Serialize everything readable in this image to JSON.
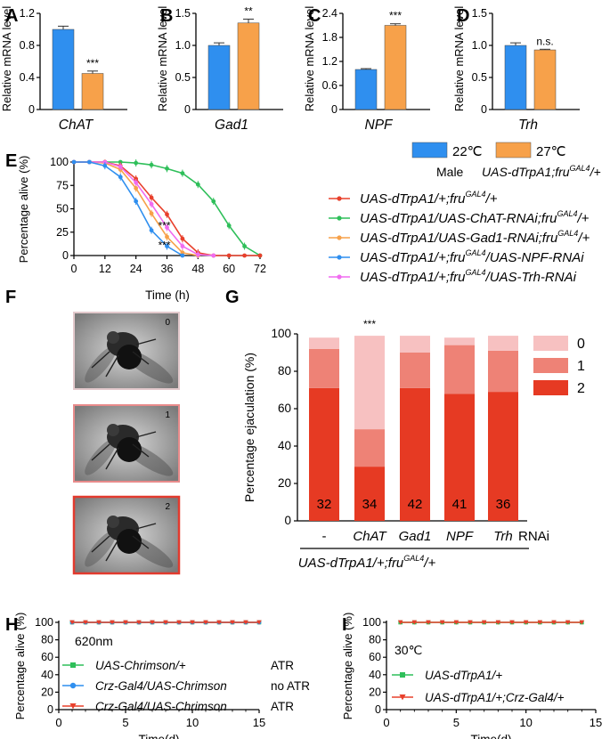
{
  "colors": {
    "blue": "#2f8fef",
    "orange": "#f7a14a",
    "red": "#e8402c",
    "green": "#2fbf5a",
    "magenta": "#f06cf0",
    "r0": "#f7c1c1",
    "r1": "#ee8276",
    "r2": "#e63a23",
    "rnai": "#e24a3b"
  },
  "chart_data": [
    {
      "panel": "A",
      "type": "bar",
      "ylabel": "Relative mRNA level",
      "xlabel": "ChAT",
      "ylim": [
        0,
        1.2
      ],
      "ticks": [
        "0",
        "0.4",
        "0.8",
        "1.2"
      ],
      "tickvals": [
        0,
        0.4,
        0.8,
        1.2
      ],
      "values": [
        1.0,
        0.45
      ],
      "errors": [
        0.04,
        0.03
      ],
      "sig": "***"
    },
    {
      "panel": "B",
      "type": "bar",
      "ylabel": "Relative mRNA level",
      "xlabel": "Gad1",
      "ylim": [
        0,
        1.5
      ],
      "ticks": [
        "0",
        "0.5",
        "1.0",
        "1.5"
      ],
      "tickvals": [
        0,
        0.5,
        1.0,
        1.5
      ],
      "values": [
        1.0,
        1.35
      ],
      "errors": [
        0.04,
        0.06
      ],
      "sig": "**"
    },
    {
      "panel": "C",
      "type": "bar",
      "ylabel": "Relative mRNA level",
      "xlabel": "NPF",
      "ylim": [
        0,
        2.4
      ],
      "ticks": [
        "0",
        "0.6",
        "1.2",
        "1.8",
        "2.4"
      ],
      "tickvals": [
        0,
        0.6,
        1.2,
        1.8,
        2.4
      ],
      "values": [
        1.0,
        2.1
      ],
      "errors": [
        0.02,
        0.04
      ],
      "sig": "***"
    },
    {
      "panel": "D",
      "type": "bar",
      "ylabel": "Relative mRNA level",
      "xlabel": "Trh",
      "ylim": [
        0,
        1.5
      ],
      "ticks": [
        "0",
        "0.5",
        "1.0",
        "1.5"
      ],
      "tickvals": [
        0,
        0.5,
        1.0,
        1.5
      ],
      "values": [
        1.0,
        0.93
      ],
      "errors": [
        0.04,
        0.01
      ],
      "sig": "n.s."
    },
    {
      "panel": "E",
      "type": "line",
      "ylabel": "Percentage alive (%)",
      "xlabel": "Time (h)",
      "xlim": [
        0,
        72
      ],
      "ylim": [
        0,
        100
      ],
      "xticks": [
        "0",
        "12",
        "24",
        "36",
        "48",
        "60",
        "72"
      ],
      "xtickvals": [
        0,
        12,
        24,
        36,
        48,
        60,
        72
      ],
      "yticks": [
        "0",
        "25",
        "50",
        "75",
        "100"
      ],
      "ytickvals": [
        0,
        25,
        50,
        75,
        100
      ],
      "annotations": [
        {
          "text": "***",
          "x": 35,
          "y": 32
        },
        {
          "text": "***",
          "x": 35,
          "y": 11
        }
      ],
      "series": [
        {
          "name": "UAS-dTrpA1/+;fru/+",
          "color": "red",
          "x": [
            0,
            6,
            12,
            18,
            24,
            30,
            36,
            42,
            48,
            54,
            60,
            66,
            72
          ],
          "y": [
            100,
            100,
            100,
            96,
            82,
            62,
            44,
            18,
            3,
            0,
            0,
            0,
            0
          ]
        },
        {
          "name": "UAS-dTrpA1/UAS-ChAT-RNAi;fru/+",
          "color": "green",
          "x": [
            0,
            6,
            12,
            18,
            24,
            30,
            36,
            42,
            48,
            54,
            60,
            66,
            72
          ],
          "y": [
            100,
            100,
            100,
            100,
            99,
            97,
            93,
            88,
            76,
            58,
            32,
            10,
            0
          ]
        },
        {
          "name": "UAS-dTrpA1/UAS-Gad1-RNAi;fru/+",
          "color": "orange",
          "x": [
            0,
            6,
            12,
            18,
            24,
            30,
            36,
            42,
            48
          ],
          "y": [
            100,
            100,
            99,
            92,
            72,
            45,
            20,
            3,
            0
          ]
        },
        {
          "name": "UAS-dTrpA1/+;fru/UAS-NPF-RNAi",
          "color": "blue",
          "x": [
            0,
            6,
            12,
            18,
            24,
            30,
            36,
            42
          ],
          "y": [
            100,
            100,
            96,
            84,
            58,
            27,
            10,
            0
          ]
        },
        {
          "name": "UAS-dTrpA1/+;fru/UAS-Trh-RNAi",
          "color": "magenta",
          "x": [
            0,
            6,
            12,
            18,
            24,
            30,
            36,
            42,
            48,
            54
          ],
          "y": [
            100,
            100,
            100,
            95,
            78,
            55,
            30,
            10,
            1,
            0
          ]
        }
      ]
    },
    {
      "panel": "G",
      "type": "bar",
      "stacked": true,
      "ylabel": "Percentage ejaculation (%)",
      "ylim": [
        0,
        100
      ],
      "yticks": [
        "0",
        "20",
        "40",
        "60",
        "80",
        "100"
      ],
      "ytickvals": [
        0,
        20,
        40,
        60,
        80,
        100
      ],
      "categories": [
        "-",
        "ChAT",
        "Gad1",
        "NPF",
        "Trh"
      ],
      "series": [
        {
          "name": "2",
          "values": [
            71,
            29,
            71,
            68,
            69
          ]
        },
        {
          "name": "1",
          "values": [
            21,
            20,
            19,
            26,
            22
          ]
        },
        {
          "name": "0",
          "values": [
            6,
            50,
            9,
            4,
            8
          ]
        }
      ],
      "n": [
        "32",
        "34",
        "42",
        "41",
        "36"
      ],
      "sig": "***",
      "rnai": "RNAi",
      "genotype": "UAS-dTrpA1/+;fru/+"
    },
    {
      "panel": "H",
      "type": "line",
      "ylabel": "Percentage alive (%)",
      "xlabel": "Time(d)",
      "xlim": [
        0,
        15
      ],
      "ylim": [
        0,
        100
      ],
      "xticks": [
        "0",
        "5",
        "10",
        "15"
      ],
      "xtickvals": [
        0,
        5,
        10,
        15
      ],
      "yticks": [
        "0",
        "20",
        "40",
        "60",
        "80",
        "100"
      ],
      "ytickvals": [
        0,
        20,
        40,
        60,
        80,
        100
      ],
      "note": "620nm",
      "series": [
        {
          "name": "UAS-Chrimson/+",
          "suffix": "ATR",
          "color": "green",
          "marker": "square",
          "x": [
            1,
            2,
            3,
            4,
            5,
            6,
            7,
            8,
            9,
            10,
            11,
            12,
            13,
            14,
            15
          ],
          "y": [
            100,
            100,
            100,
            100,
            100,
            100,
            100,
            100,
            100,
            100,
            100,
            100,
            100,
            100,
            100
          ]
        },
        {
          "name": "Crz-Gal4/UAS-Chrimson",
          "suffix": "no ATR",
          "color": "blue",
          "marker": "circle",
          "x": [
            1,
            2,
            3,
            4,
            5,
            6,
            7,
            8,
            9,
            10,
            11,
            12,
            13,
            14,
            15
          ],
          "y": [
            100,
            100,
            100,
            100,
            100,
            100,
            100,
            100,
            100,
            100,
            100,
            100,
            100,
            100,
            100
          ]
        },
        {
          "name": "Crz-Gal4/UAS-Chrimson",
          "suffix": "ATR",
          "color": "red",
          "marker": "tri",
          "x": [
            1,
            2,
            3,
            4,
            5,
            6,
            7,
            8,
            9,
            10,
            11,
            12,
            13,
            14,
            15
          ],
          "y": [
            100,
            100,
            100,
            100,
            100,
            100,
            100,
            100,
            100,
            100,
            100,
            100,
            100,
            100,
            100
          ]
        }
      ]
    },
    {
      "panel": "I",
      "type": "line",
      "ylabel": "Percentage alive (%)",
      "xlabel": "Time(d)",
      "xlim": [
        0,
        15
      ],
      "ylim": [
        0,
        100
      ],
      "xticks": [
        "0",
        "5",
        "10",
        "15"
      ],
      "xtickvals": [
        0,
        5,
        10,
        15
      ],
      "yticks": [
        "0",
        "20",
        "40",
        "60",
        "80",
        "100"
      ],
      "ytickvals": [
        0,
        20,
        40,
        60,
        80,
        100
      ],
      "note": "30℃",
      "series": [
        {
          "name": "UAS-dTrpA1/+",
          "color": "green",
          "marker": "square",
          "x": [
            1,
            2,
            3,
            4,
            5,
            6,
            7,
            8,
            9,
            10,
            11,
            12,
            13,
            14
          ],
          "y": [
            100,
            100,
            100,
            100,
            100,
            100,
            100,
            100,
            100,
            100,
            100,
            100,
            100,
            100
          ]
        },
        {
          "name": "UAS-dTrpA1/+;Crz-Gal4/+",
          "color": "red",
          "marker": "tri",
          "x": [
            1,
            2,
            3,
            4,
            5,
            6,
            7,
            8,
            9,
            10,
            11,
            12,
            13,
            14
          ],
          "y": [
            100,
            100,
            100,
            100,
            100,
            100,
            100,
            100,
            100,
            100,
            100,
            100,
            100,
            100
          ]
        }
      ]
    }
  ],
  "labels": {
    "A": "A",
    "B": "B",
    "C": "C",
    "D": "D",
    "E": "E",
    "F": "F",
    "G": "G",
    "H": "H",
    "I": "I"
  },
  "temp_legend": {
    "t1": "22℃",
    "t2": "27℃",
    "male": "Male",
    "genotype": "UAS-dTrpA1;fru"
  },
  "gal4": "GAL4",
  "e_legend": [
    {
      "pre": "UAS-dTrpA1/+;fru",
      "post": "/+"
    },
    {
      "pre": "UAS-dTrpA1/UAS-ChAT-RNAi;fru",
      "post": "/+"
    },
    {
      "pre": "UAS-dTrpA1/UAS-Gad1-RNAi;fru",
      "post": "/+"
    },
    {
      "pre": "UAS-dTrpA1/+;fru",
      "post": "/UAS-NPF-RNAi"
    },
    {
      "pre": "UAS-dTrpA1/+;fru",
      "post": "/UAS-Trh-RNAi"
    }
  ],
  "photos": [
    "0",
    "1",
    "2"
  ],
  "g_genotype": {
    "pre": "UAS-dTrpA1/+;fru",
    "post": "/+"
  },
  "g_legend": [
    "0",
    "1",
    "2"
  ]
}
